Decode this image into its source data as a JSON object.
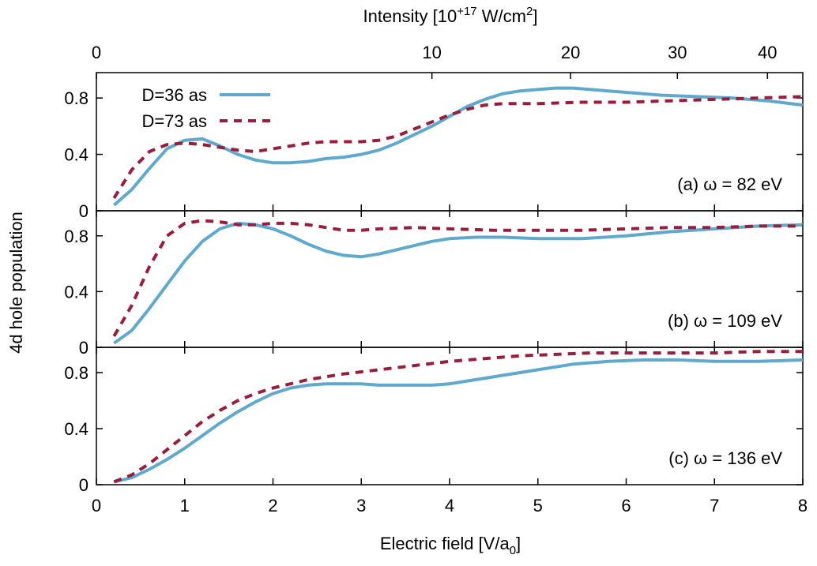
{
  "figure": {
    "top_axis_title": "Intensity [10",
    "top_axis_title_sup": "+17",
    "top_axis_title_mid": " W/cm",
    "top_axis_title_sup2": "2",
    "top_axis_title_end": "]",
    "x_axis_title": "Electric field [V/a",
    "x_axis_title_sub": "0",
    "x_axis_title_end": "]",
    "y_axis_title": "4d hole population"
  },
  "colors": {
    "d36": "#5ea9cd",
    "d73": "#9a1d3e"
  },
  "chart_data": {
    "type": "line",
    "xlabel": "Electric field [V/a0]",
    "ylabel": "4d hole population",
    "top_xlabel": "Intensity [10+17 W/cm2]",
    "xlim": [
      0,
      8
    ],
    "ylim": [
      0,
      0.98
    ],
    "x_ticks": [
      "0",
      "1",
      "2",
      "3",
      "4",
      "5",
      "6",
      "7",
      "8"
    ],
    "y_ticks": [
      "0",
      "0.4",
      "0.8"
    ],
    "top_ticks": [
      {
        "label": "0",
        "field": 0
      },
      {
        "label": "10",
        "field": 3.8
      },
      {
        "label": "20",
        "field": 5.37
      },
      {
        "label": "30",
        "field": 6.58
      },
      {
        "label": "40",
        "field": 7.6
      }
    ],
    "legend": [
      {
        "name": "D=36 as",
        "style": "solid",
        "color": "#5ea9cd"
      },
      {
        "name": "D=73 as",
        "style": "dashed",
        "color": "#9a1d3e"
      }
    ],
    "panels": [
      {
        "label": "(a) ω = 82 eV",
        "series": [
          {
            "name": "D=36 as",
            "points": [
              [
                0.2,
                0.04
              ],
              [
                0.4,
                0.15
              ],
              [
                0.6,
                0.3
              ],
              [
                0.8,
                0.44
              ],
              [
                1.0,
                0.5
              ],
              [
                1.2,
                0.51
              ],
              [
                1.4,
                0.46
              ],
              [
                1.6,
                0.4
              ],
              [
                1.8,
                0.36
              ],
              [
                2.0,
                0.34
              ],
              [
                2.2,
                0.34
              ],
              [
                2.4,
                0.35
              ],
              [
                2.6,
                0.37
              ],
              [
                2.8,
                0.38
              ],
              [
                3.0,
                0.4
              ],
              [
                3.2,
                0.43
              ],
              [
                3.4,
                0.48
              ],
              [
                3.6,
                0.54
              ],
              [
                3.8,
                0.6
              ],
              [
                4.0,
                0.67
              ],
              [
                4.2,
                0.74
              ],
              [
                4.4,
                0.79
              ],
              [
                4.6,
                0.83
              ],
              [
                4.8,
                0.85
              ],
              [
                5.0,
                0.86
              ],
              [
                5.2,
                0.87
              ],
              [
                5.4,
                0.87
              ],
              [
                5.6,
                0.86
              ],
              [
                5.8,
                0.85
              ],
              [
                6.0,
                0.84
              ],
              [
                6.4,
                0.82
              ],
              [
                6.8,
                0.81
              ],
              [
                7.2,
                0.8
              ],
              [
                7.6,
                0.78
              ],
              [
                8.0,
                0.75
              ]
            ]
          },
          {
            "name": "D=73 as",
            "points": [
              [
                0.2,
                0.09
              ],
              [
                0.4,
                0.29
              ],
              [
                0.6,
                0.42
              ],
              [
                0.8,
                0.47
              ],
              [
                1.0,
                0.48
              ],
              [
                1.2,
                0.47
              ],
              [
                1.4,
                0.45
              ],
              [
                1.6,
                0.43
              ],
              [
                1.8,
                0.42
              ],
              [
                2.0,
                0.44
              ],
              [
                2.2,
                0.46
              ],
              [
                2.4,
                0.48
              ],
              [
                2.6,
                0.49
              ],
              [
                2.8,
                0.49
              ],
              [
                3.0,
                0.49
              ],
              [
                3.2,
                0.5
              ],
              [
                3.4,
                0.53
              ],
              [
                3.6,
                0.58
              ],
              [
                3.8,
                0.63
              ],
              [
                4.0,
                0.68
              ],
              [
                4.2,
                0.72
              ],
              [
                4.4,
                0.75
              ],
              [
                4.6,
                0.76
              ],
              [
                5.0,
                0.76
              ],
              [
                5.5,
                0.77
              ],
              [
                6.0,
                0.77
              ],
              [
                6.5,
                0.78
              ],
              [
                7.0,
                0.79
              ],
              [
                7.5,
                0.8
              ],
              [
                8.0,
                0.81
              ]
            ]
          }
        ]
      },
      {
        "label": "(b) ω = 109 eV",
        "series": [
          {
            "name": "D=36 as",
            "points": [
              [
                0.2,
                0.03
              ],
              [
                0.4,
                0.12
              ],
              [
                0.6,
                0.28
              ],
              [
                0.8,
                0.45
              ],
              [
                1.0,
                0.62
              ],
              [
                1.2,
                0.76
              ],
              [
                1.4,
                0.85
              ],
              [
                1.6,
                0.89
              ],
              [
                1.8,
                0.88
              ],
              [
                2.0,
                0.85
              ],
              [
                2.2,
                0.8
              ],
              [
                2.4,
                0.74
              ],
              [
                2.6,
                0.69
              ],
              [
                2.8,
                0.66
              ],
              [
                3.0,
                0.65
              ],
              [
                3.2,
                0.67
              ],
              [
                3.4,
                0.7
              ],
              [
                3.6,
                0.73
              ],
              [
                3.8,
                0.76
              ],
              [
                4.0,
                0.78
              ],
              [
                4.3,
                0.79
              ],
              [
                4.6,
                0.79
              ],
              [
                5.0,
                0.78
              ],
              [
                5.5,
                0.78
              ],
              [
                6.0,
                0.8
              ],
              [
                6.5,
                0.83
              ],
              [
                7.0,
                0.85
              ],
              [
                7.5,
                0.87
              ],
              [
                8.0,
                0.88
              ]
            ]
          },
          {
            "name": "D=73 as",
            "points": [
              [
                0.2,
                0.08
              ],
              [
                0.4,
                0.3
              ],
              [
                0.6,
                0.58
              ],
              [
                0.8,
                0.8
              ],
              [
                1.0,
                0.89
              ],
              [
                1.2,
                0.91
              ],
              [
                1.4,
                0.9
              ],
              [
                1.6,
                0.88
              ],
              [
                1.8,
                0.88
              ],
              [
                2.0,
                0.89
              ],
              [
                2.2,
                0.89
              ],
              [
                2.4,
                0.88
              ],
              [
                2.6,
                0.86
              ],
              [
                2.8,
                0.84
              ],
              [
                3.0,
                0.84
              ],
              [
                3.2,
                0.85
              ],
              [
                3.6,
                0.86
              ],
              [
                4.0,
                0.85
              ],
              [
                4.5,
                0.84
              ],
              [
                5.0,
                0.84
              ],
              [
                5.5,
                0.84
              ],
              [
                6.0,
                0.85
              ],
              [
                6.5,
                0.86
              ],
              [
                7.0,
                0.86
              ],
              [
                7.5,
                0.87
              ],
              [
                8.0,
                0.87
              ]
            ]
          }
        ]
      },
      {
        "label": "(c) ω = 136 eV",
        "series": [
          {
            "name": "D=36 as",
            "points": [
              [
                0.2,
                0.02
              ],
              [
                0.4,
                0.05
              ],
              [
                0.6,
                0.11
              ],
              [
                0.8,
                0.18
              ],
              [
                1.0,
                0.26
              ],
              [
                1.2,
                0.35
              ],
              [
                1.4,
                0.44
              ],
              [
                1.6,
                0.52
              ],
              [
                1.8,
                0.59
              ],
              [
                2.0,
                0.65
              ],
              [
                2.2,
                0.69
              ],
              [
                2.4,
                0.71
              ],
              [
                2.6,
                0.72
              ],
              [
                2.8,
                0.72
              ],
              [
                3.0,
                0.72
              ],
              [
                3.2,
                0.71
              ],
              [
                3.4,
                0.71
              ],
              [
                3.6,
                0.71
              ],
              [
                3.8,
                0.71
              ],
              [
                4.0,
                0.72
              ],
              [
                4.2,
                0.74
              ],
              [
                4.4,
                0.76
              ],
              [
                4.6,
                0.78
              ],
              [
                4.8,
                0.8
              ],
              [
                5.0,
                0.82
              ],
              [
                5.4,
                0.86
              ],
              [
                5.8,
                0.88
              ],
              [
                6.2,
                0.89
              ],
              [
                6.6,
                0.89
              ],
              [
                7.0,
                0.88
              ],
              [
                7.5,
                0.88
              ],
              [
                8.0,
                0.89
              ]
            ]
          },
          {
            "name": "D=73 as",
            "points": [
              [
                0.2,
                0.02
              ],
              [
                0.4,
                0.07
              ],
              [
                0.6,
                0.15
              ],
              [
                0.8,
                0.25
              ],
              [
                1.0,
                0.35
              ],
              [
                1.2,
                0.45
              ],
              [
                1.4,
                0.53
              ],
              [
                1.6,
                0.6
              ],
              [
                1.8,
                0.65
              ],
              [
                2.0,
                0.69
              ],
              [
                2.4,
                0.75
              ],
              [
                2.8,
                0.79
              ],
              [
                3.2,
                0.82
              ],
              [
                3.6,
                0.85
              ],
              [
                4.0,
                0.88
              ],
              [
                4.4,
                0.9
              ],
              [
                4.8,
                0.92
              ],
              [
                5.2,
                0.93
              ],
              [
                5.6,
                0.94
              ],
              [
                6.0,
                0.94
              ],
              [
                6.5,
                0.94
              ],
              [
                7.0,
                0.94
              ],
              [
                7.5,
                0.95
              ],
              [
                8.0,
                0.95
              ]
            ]
          }
        ]
      }
    ]
  }
}
